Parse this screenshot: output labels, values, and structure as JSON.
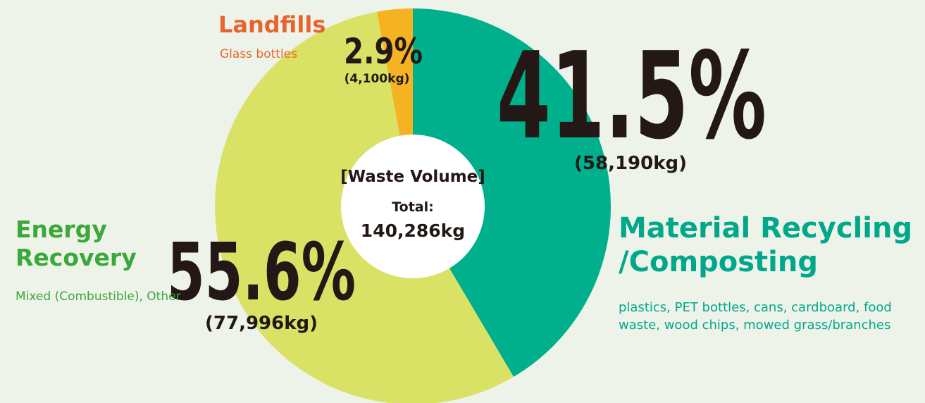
{
  "chart_data": {
    "type": "donut",
    "categories": [
      "Material Recycling /Composting",
      "Energy Recovery",
      "Landfills"
    ],
    "descriptions": [
      "plastics, PET bottles, cans, cardboard, food waste, wood chips, mowed grass/branches",
      "Mixed (Combustible), Other",
      "Glass bottles"
    ],
    "values": [
      41.5,
      55.6,
      2.9
    ],
    "value_labels": [
      "41.5%",
      "55.6%",
      "2.9%"
    ],
    "weights": [
      58190,
      77996,
      4100
    ],
    "weight_labels": [
      "(58,190kg)",
      "(77,996kg)",
      "(4,100kg)"
    ],
    "colors": [
      "#00b08c",
      "#d9e265",
      "#f5b324"
    ],
    "label_colors": [
      "#00a88a",
      "#3aa83a",
      "#e8642c"
    ],
    "center_title": "[Waste Volume]",
    "total_label": "Total:",
    "total": "140,286kg"
  }
}
